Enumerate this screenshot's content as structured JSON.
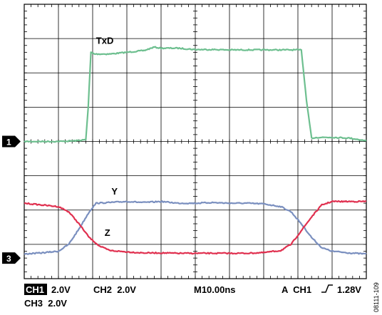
{
  "chart_data": {
    "type": "line",
    "grid": true,
    "x_divisions": 10,
    "y_divisions": 8,
    "xlim": [
      0,
      10
    ],
    "ylim": [
      0,
      8
    ],
    "markers": [
      {
        "label": "1",
        "y": 4.0
      },
      {
        "label": "3",
        "y": 0.6
      }
    ],
    "series": [
      {
        "name": "TxD",
        "color": "#6dbf8f",
        "x": [
          0,
          0.5,
          1.0,
          1.5,
          1.8,
          1.87,
          1.95,
          2.05,
          2.5,
          3.0,
          3.5,
          3.8,
          4.0,
          4.5,
          5.0,
          5.5,
          6.0,
          6.5,
          7.0,
          7.5,
          8.0,
          8.1,
          8.25,
          8.4,
          8.6,
          9.0,
          9.5,
          10.0
        ],
        "y": [
          4.0,
          4.0,
          4.0,
          4.02,
          4.05,
          5.0,
          6.6,
          6.55,
          6.55,
          6.6,
          6.65,
          6.75,
          6.72,
          6.72,
          6.68,
          6.68,
          6.67,
          6.67,
          6.67,
          6.67,
          6.67,
          6.67,
          5.2,
          4.1,
          4.12,
          4.12,
          4.1,
          4.02
        ]
      },
      {
        "name": "Y",
        "color": "#7a8fbf",
        "x": [
          0,
          0.5,
          1.0,
          1.3,
          1.6,
          1.9,
          2.1,
          2.5,
          3.0,
          3.5,
          4.0,
          4.5,
          5.0,
          5.5,
          6.0,
          6.5,
          7.0,
          7.5,
          7.8,
          8.1,
          8.4,
          8.7,
          9.0,
          9.5,
          10.0
        ],
        "y": [
          0.72,
          0.75,
          0.8,
          1.0,
          1.45,
          1.95,
          2.2,
          2.22,
          2.25,
          2.22,
          2.25,
          2.2,
          2.2,
          2.22,
          2.2,
          2.2,
          2.18,
          2.1,
          1.95,
          1.6,
          1.2,
          0.9,
          0.8,
          0.75,
          0.72
        ]
      },
      {
        "name": "Z",
        "color": "#e0304f",
        "x": [
          0,
          0.5,
          1.0,
          1.3,
          1.6,
          1.9,
          2.2,
          2.5,
          3.0,
          3.5,
          4.0,
          4.5,
          5.0,
          5.5,
          6.0,
          6.5,
          7.0,
          7.5,
          7.8,
          8.1,
          8.4,
          8.7,
          9.0,
          9.5,
          10.0
        ],
        "y": [
          2.2,
          2.15,
          2.1,
          1.95,
          1.6,
          1.2,
          0.95,
          0.82,
          0.78,
          0.75,
          0.75,
          0.74,
          0.74,
          0.74,
          0.74,
          0.74,
          0.76,
          0.82,
          1.0,
          1.4,
          1.8,
          2.15,
          2.25,
          2.25,
          2.25
        ]
      }
    ],
    "annotations": [
      {
        "text": "TxD",
        "x": 2.1,
        "y": 6.85
      },
      {
        "text": "Y",
        "x": 2.55,
        "y": 2.45
      },
      {
        "text": "Z",
        "x": 2.35,
        "y": 1.25
      }
    ]
  },
  "status": {
    "ch1_box": "CH1",
    "ch1_scale": "2.0V",
    "ch2": "CH2  2.0V",
    "timebase": "M10.00ns",
    "trigger_prefix": "A  CH1",
    "trigger_level": "1.28V",
    "ch3": "CH3  2.0V"
  },
  "figure_id": "08111-109"
}
